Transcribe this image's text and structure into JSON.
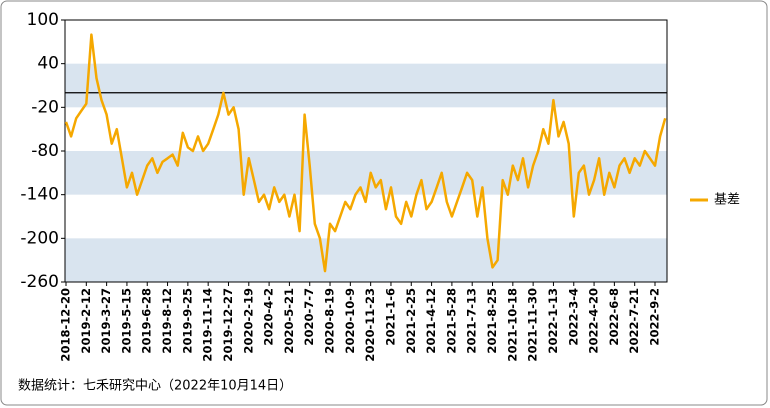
{
  "chart_data": {
    "type": "line",
    "categories": [
      "2018-12-20",
      null,
      null,
      null,
      "2019-2-12",
      null,
      null,
      null,
      "2019-3-27",
      null,
      null,
      null,
      "2019-5-15",
      null,
      null,
      null,
      "2019-6-28",
      null,
      null,
      null,
      "2019-8-12",
      null,
      null,
      null,
      "2019-9-25",
      null,
      null,
      null,
      "2019-11-14",
      null,
      null,
      null,
      "2019-12-27",
      null,
      null,
      null,
      "2020-2-19",
      null,
      null,
      null,
      "2020-4-2",
      null,
      null,
      null,
      "2020-5-21",
      null,
      null,
      null,
      "2020-7-7",
      null,
      null,
      null,
      "2020-8-19",
      null,
      null,
      null,
      "2020-10-9",
      null,
      null,
      null,
      "2020-11-23",
      null,
      null,
      null,
      "2021-1-6",
      null,
      null,
      null,
      "2021-2-25",
      null,
      null,
      null,
      "2021-4-12",
      null,
      null,
      null,
      "2021-5-28",
      null,
      null,
      null,
      "2021-7-13",
      null,
      null,
      null,
      "2021-8-25",
      null,
      null,
      null,
      "2021-10-18",
      null,
      null,
      null,
      "2021-11-30",
      null,
      null,
      null,
      "2022-1-13",
      null,
      null,
      null,
      "2022-3-4",
      null,
      null,
      null,
      "2022-4-20",
      null,
      null,
      null,
      "2022-6-8",
      null,
      null,
      null,
      "2022-7-21",
      null,
      null,
      null,
      "2022-9-2",
      null,
      null
    ],
    "series": [
      {
        "name": "基差",
        "color": "#f5a800",
        "values": [
          -40,
          -60,
          -35,
          -25,
          -15,
          80,
          20,
          -10,
          -30,
          -70,
          -50,
          -90,
          -130,
          -110,
          -140,
          -120,
          -100,
          -90,
          -110,
          -95,
          -90,
          -85,
          -100,
          -55,
          -75,
          -80,
          -60,
          -80,
          -70,
          -50,
          -30,
          0,
          -30,
          -20,
          -50,
          -140,
          -90,
          -120,
          -150,
          -140,
          -160,
          -130,
          -150,
          -140,
          -170,
          -140,
          -190,
          -30,
          -100,
          -180,
          -200,
          -245,
          -180,
          -190,
          -170,
          -150,
          -160,
          -140,
          -130,
          -150,
          -110,
          -130,
          -120,
          -160,
          -130,
          -170,
          -180,
          -150,
          -170,
          -140,
          -120,
          -160,
          -150,
          -130,
          -110,
          -150,
          -170,
          -150,
          -130,
          -110,
          -120,
          -170,
          -130,
          -200,
          -240,
          -230,
          -120,
          -140,
          -100,
          -120,
          -90,
          -130,
          -100,
          -80,
          -50,
          -70,
          -10,
          -60,
          -40,
          -70,
          -170,
          -110,
          -100,
          -140,
          -120,
          -90,
          -140,
          -110,
          -130,
          -100,
          -90,
          -110,
          -90,
          -100,
          -80,
          -90,
          -100,
          -60,
          -35
        ]
      }
    ],
    "ylim": [
      -260,
      100
    ],
    "yticks": [
      100,
      40,
      -20,
      -80,
      -140,
      -200,
      -260
    ],
    "grid": "bands",
    "band_color": "#d9e4ef",
    "reference_line": 0,
    "legend": "right",
    "footer": "数据统计：七禾研究中心（2022年10月14日）"
  }
}
